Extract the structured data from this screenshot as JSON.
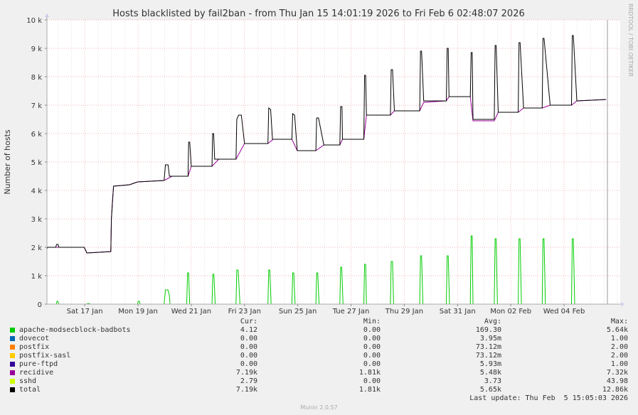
{
  "chart_data": {
    "type": "line",
    "title": "Hosts blacklisted by fail2ban - from Thu Jan 15 14:01:19 2026 to Fri Feb  6 02:48:07 2026",
    "ylabel": "Number of hosts",
    "xlabel": "",
    "side_label": "RRDTOOL / TOBI OETIKER",
    "ylim": [
      0,
      10000
    ],
    "yticks": [
      {
        "value": 0,
        "label": "0"
      },
      {
        "value": 1000,
        "label": "1 k"
      },
      {
        "value": 2000,
        "label": "2 k"
      },
      {
        "value": 3000,
        "label": "3 k"
      },
      {
        "value": 4000,
        "label": "4 k"
      },
      {
        "value": 5000,
        "label": "5 k"
      },
      {
        "value": 6000,
        "label": "6 k"
      },
      {
        "value": 7000,
        "label": "7 k"
      },
      {
        "value": 8000,
        "label": "8 k"
      },
      {
        "value": 9000,
        "label": "9 k"
      },
      {
        "value": 10000,
        "label": "10 k"
      }
    ],
    "xlim": [
      0,
      21.53
    ],
    "xticks": [
      {
        "value": 1.42,
        "label": "Sat 17 Jan"
      },
      {
        "value": 3.42,
        "label": "Mon 19 Jan"
      },
      {
        "value": 5.42,
        "label": "Wed 21 Jan"
      },
      {
        "value": 7.42,
        "label": "Fri 23 Jan"
      },
      {
        "value": 9.42,
        "label": "Sun 25 Jan"
      },
      {
        "value": 11.42,
        "label": "Tue 27 Jan"
      },
      {
        "value": 13.42,
        "label": "Thu 29 Jan"
      },
      {
        "value": 15.42,
        "label": "Sat 31 Jan"
      },
      {
        "value": 17.42,
        "label": "Mon 02 Feb"
      },
      {
        "value": 19.42,
        "label": "Wed 04 Feb"
      }
    ],
    "now_x": 21.05,
    "series": [
      {
        "name": "recidive",
        "color": "#990099",
        "points": [
          [
            0,
            1950
          ],
          [
            0.03,
            2000
          ],
          [
            0.3,
            2000
          ],
          [
            1.4,
            2000
          ],
          [
            1.5,
            1800
          ],
          [
            2.4,
            1850
          ],
          [
            2.42,
            3000
          ],
          [
            2.5,
            4150
          ],
          [
            3.1,
            4200
          ],
          [
            3.4,
            4300
          ],
          [
            4.4,
            4350
          ],
          [
            4.7,
            4500
          ],
          [
            5.3,
            4500
          ],
          [
            5.42,
            4850
          ],
          [
            6.2,
            4850
          ],
          [
            6.45,
            5100
          ],
          [
            7.1,
            5100
          ],
          [
            7.42,
            5650
          ],
          [
            8.3,
            5650
          ],
          [
            8.5,
            5800
          ],
          [
            9.2,
            5800
          ],
          [
            9.4,
            5400
          ],
          [
            10.1,
            5400
          ],
          [
            10.4,
            5600
          ],
          [
            11.0,
            5600
          ],
          [
            11.1,
            5800
          ],
          [
            11.9,
            5800
          ],
          [
            12.0,
            6650
          ],
          [
            12.9,
            6650
          ],
          [
            13.05,
            6800
          ],
          [
            14.0,
            6800
          ],
          [
            14.15,
            7100
          ],
          [
            15.0,
            7150
          ],
          [
            15.1,
            7300
          ],
          [
            15.9,
            7300
          ],
          [
            16.0,
            6450
          ],
          [
            16.8,
            6450
          ],
          [
            16.95,
            6750
          ],
          [
            17.7,
            6750
          ],
          [
            17.9,
            6900
          ],
          [
            18.6,
            6900
          ],
          [
            18.9,
            7000
          ],
          [
            19.7,
            7000
          ],
          [
            19.9,
            7150
          ],
          [
            20.6,
            7180
          ],
          [
            21.0,
            7200
          ]
        ]
      },
      {
        "name": "total",
        "color": "#000000",
        "points": [
          [
            0,
            1950
          ],
          [
            0.03,
            2000
          ],
          [
            0.33,
            2000
          ],
          [
            0.36,
            2100
          ],
          [
            0.42,
            2100
          ],
          [
            0.45,
            2000
          ],
          [
            1.4,
            2000
          ],
          [
            1.5,
            1800
          ],
          [
            2.4,
            1850
          ],
          [
            2.42,
            3000
          ],
          [
            2.5,
            4150
          ],
          [
            3.1,
            4200
          ],
          [
            3.4,
            4300
          ],
          [
            4.4,
            4350
          ],
          [
            4.45,
            4900
          ],
          [
            4.55,
            4900
          ],
          [
            4.6,
            4500
          ],
          [
            4.7,
            4500
          ],
          [
            5.3,
            4500
          ],
          [
            5.32,
            5700
          ],
          [
            5.36,
            5700
          ],
          [
            5.42,
            4850
          ],
          [
            6.2,
            4850
          ],
          [
            6.22,
            6000
          ],
          [
            6.26,
            6000
          ],
          [
            6.3,
            5100
          ],
          [
            7.1,
            5100
          ],
          [
            7.13,
            6500
          ],
          [
            7.2,
            6650
          ],
          [
            7.3,
            6650
          ],
          [
            7.42,
            5650
          ],
          [
            8.3,
            5650
          ],
          [
            8.33,
            6900
          ],
          [
            8.4,
            6850
          ],
          [
            8.47,
            5800
          ],
          [
            9.2,
            5800
          ],
          [
            9.23,
            6700
          ],
          [
            9.3,
            6650
          ],
          [
            9.4,
            5400
          ],
          [
            10.1,
            5400
          ],
          [
            10.13,
            6550
          ],
          [
            10.2,
            6550
          ],
          [
            10.4,
            5600
          ],
          [
            11.0,
            5600
          ],
          [
            11.03,
            6950
          ],
          [
            11.08,
            6950
          ],
          [
            11.1,
            5800
          ],
          [
            11.9,
            5800
          ],
          [
            11.93,
            8050
          ],
          [
            11.97,
            8050
          ],
          [
            12.0,
            6650
          ],
          [
            12.9,
            6650
          ],
          [
            12.93,
            8250
          ],
          [
            12.98,
            8250
          ],
          [
            13.05,
            6800
          ],
          [
            14.0,
            6800
          ],
          [
            14.03,
            8900
          ],
          [
            14.07,
            8900
          ],
          [
            14.15,
            7150
          ],
          [
            15.0,
            7150
          ],
          [
            15.03,
            9000
          ],
          [
            15.07,
            9000
          ],
          [
            15.1,
            7300
          ],
          [
            15.9,
            7300
          ],
          [
            15.93,
            8850
          ],
          [
            15.97,
            8850
          ],
          [
            16.0,
            6500
          ],
          [
            16.8,
            6500
          ],
          [
            16.83,
            9100
          ],
          [
            16.87,
            9100
          ],
          [
            16.95,
            6750
          ],
          [
            17.7,
            6750
          ],
          [
            17.73,
            9200
          ],
          [
            17.77,
            9200
          ],
          [
            17.9,
            6900
          ],
          [
            18.6,
            6900
          ],
          [
            18.63,
            9350
          ],
          [
            18.67,
            9350
          ],
          [
            18.9,
            7000
          ],
          [
            19.7,
            7000
          ],
          [
            19.73,
            9450
          ],
          [
            19.77,
            9450
          ],
          [
            19.9,
            7150
          ],
          [
            20.6,
            7180
          ],
          [
            21.0,
            7200
          ]
        ]
      },
      {
        "name": "apache-modsecblock-badbots",
        "color": "#00cc00",
        "points": [
          [
            0,
            0
          ],
          [
            0.35,
            0
          ],
          [
            0.38,
            100
          ],
          [
            0.41,
            100
          ],
          [
            0.45,
            0
          ],
          [
            1.5,
            0
          ],
          [
            1.52,
            20
          ],
          [
            1.6,
            20
          ],
          [
            1.62,
            0
          ],
          [
            3.4,
            0
          ],
          [
            3.43,
            100
          ],
          [
            3.47,
            100
          ],
          [
            3.5,
            0
          ],
          [
            4.4,
            0
          ],
          [
            4.45,
            500
          ],
          [
            4.55,
            500
          ],
          [
            4.6,
            300
          ],
          [
            4.62,
            0
          ],
          [
            5.25,
            0
          ],
          [
            5.28,
            1100
          ],
          [
            5.32,
            1100
          ],
          [
            5.36,
            0
          ],
          [
            6.2,
            0
          ],
          [
            6.23,
            1050
          ],
          [
            6.27,
            1050
          ],
          [
            6.32,
            0
          ],
          [
            7.1,
            0
          ],
          [
            7.13,
            1200
          ],
          [
            7.18,
            1200
          ],
          [
            7.25,
            0
          ],
          [
            8.3,
            0
          ],
          [
            8.33,
            1200
          ],
          [
            8.37,
            1200
          ],
          [
            8.42,
            0
          ],
          [
            9.2,
            0
          ],
          [
            9.23,
            1100
          ],
          [
            9.27,
            1100
          ],
          [
            9.32,
            0
          ],
          [
            10.1,
            0
          ],
          [
            10.13,
            1100
          ],
          [
            10.17,
            1100
          ],
          [
            10.22,
            0
          ],
          [
            11.0,
            0
          ],
          [
            11.03,
            1300
          ],
          [
            11.07,
            1300
          ],
          [
            11.12,
            0
          ],
          [
            11.9,
            0
          ],
          [
            11.93,
            1400
          ],
          [
            11.97,
            1400
          ],
          [
            12.0,
            0
          ],
          [
            12.9,
            0
          ],
          [
            12.93,
            1500
          ],
          [
            12.98,
            1500
          ],
          [
            13.02,
            0
          ],
          [
            14.0,
            0
          ],
          [
            14.03,
            1700
          ],
          [
            14.07,
            1700
          ],
          [
            14.12,
            0
          ],
          [
            15.0,
            0
          ],
          [
            15.03,
            1700
          ],
          [
            15.07,
            1700
          ],
          [
            15.12,
            0
          ],
          [
            15.9,
            0
          ],
          [
            15.93,
            2400
          ],
          [
            15.97,
            2400
          ],
          [
            16.0,
            0
          ],
          [
            16.8,
            0
          ],
          [
            16.83,
            2300
          ],
          [
            16.87,
            2300
          ],
          [
            16.92,
            0
          ],
          [
            17.7,
            0
          ],
          [
            17.73,
            2300
          ],
          [
            17.77,
            2300
          ],
          [
            17.82,
            0
          ],
          [
            18.6,
            0
          ],
          [
            18.63,
            2300
          ],
          [
            18.67,
            2300
          ],
          [
            18.72,
            0
          ],
          [
            19.7,
            0
          ],
          [
            19.73,
            2300
          ],
          [
            19.77,
            2300
          ],
          [
            19.82,
            0
          ],
          [
            21.0,
            0
          ]
        ]
      }
    ],
    "legend": {
      "headers": {
        "cur": "Cur:",
        "min": "Min:",
        "avg": "Avg:",
        "max": "Max:"
      },
      "rows": [
        {
          "name": "apache-modsecblock-badbots",
          "color": "#00cc00",
          "cur": "4.12",
          "min": "0.00",
          "avg": "169.30",
          "max": "5.64k"
        },
        {
          "name": "dovecot",
          "color": "#0066b3",
          "cur": "0.00",
          "min": "0.00",
          "avg": "3.95m",
          "max": "1.00"
        },
        {
          "name": "postfix",
          "color": "#ff8000",
          "cur": "0.00",
          "min": "0.00",
          "avg": "73.12m",
          "max": "2.00"
        },
        {
          "name": "postfix-sasl",
          "color": "#ffcc00",
          "cur": "0.00",
          "min": "0.00",
          "avg": "73.12m",
          "max": "2.00"
        },
        {
          "name": "pure-ftpd",
          "color": "#330099",
          "cur": "0.00",
          "min": "0.00",
          "avg": "5.93m",
          "max": "1.00"
        },
        {
          "name": "recidive",
          "color": "#990099",
          "cur": "7.19k",
          "min": "1.81k",
          "avg": "5.48k",
          "max": "7.32k"
        },
        {
          "name": "sshd",
          "color": "#ccff00",
          "cur": "2.79",
          "min": "0.00",
          "avg": "3.73",
          "max": "43.98"
        },
        {
          "name": "total",
          "color": "#000000",
          "cur": "7.19k",
          "min": "1.81k",
          "avg": "5.65k",
          "max": "12.86k"
        }
      ]
    },
    "last_update": "Last update: Thu Feb  5 15:05:03 2026",
    "footer": "Munin 2.0.57"
  }
}
